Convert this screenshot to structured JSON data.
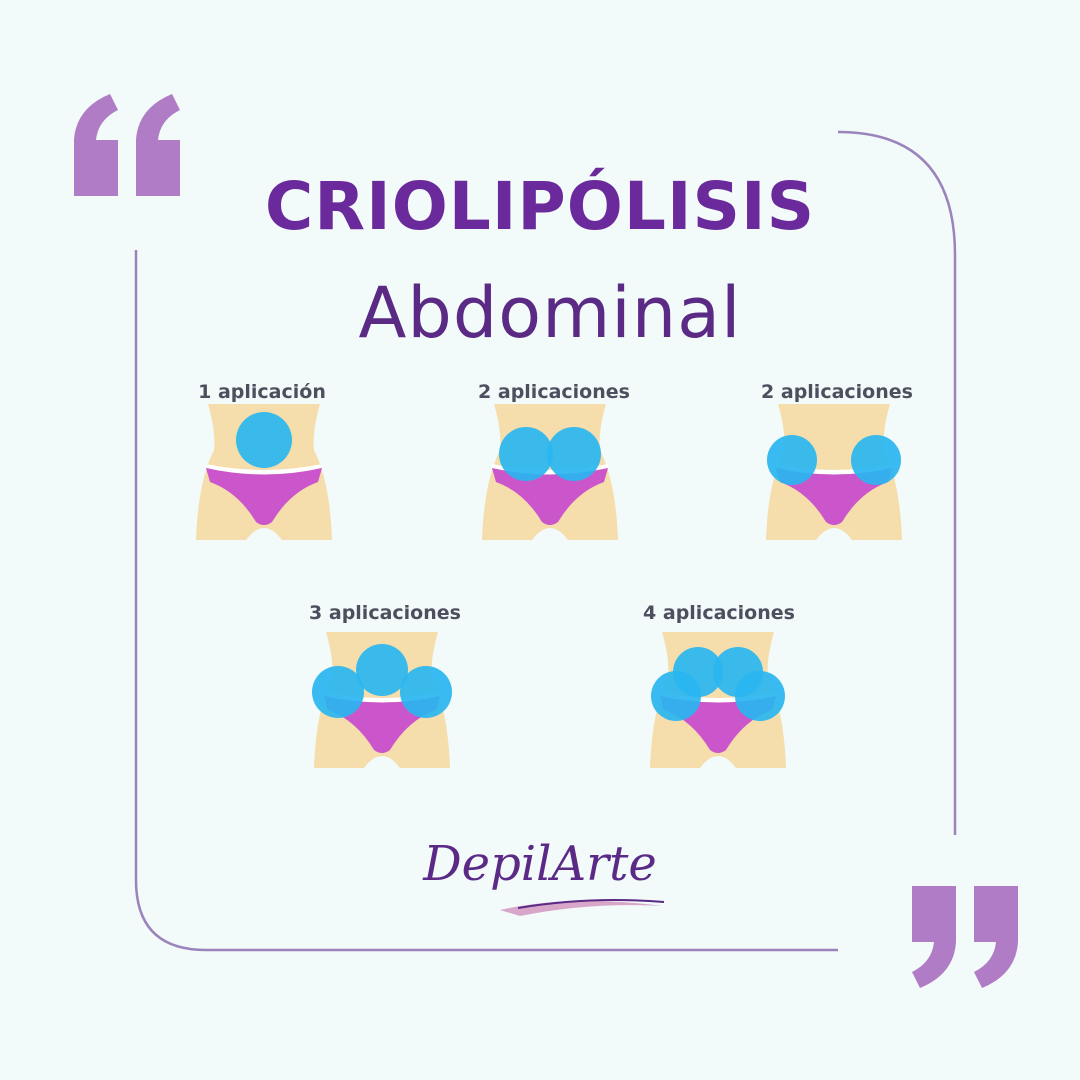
{
  "title": "CRIOLIPÓLISIS",
  "subtitle": "Abdominal",
  "figures": [
    {
      "label": "1 aplicación",
      "applications": 1
    },
    {
      "label": "2 aplicaciones",
      "applications": 2
    },
    {
      "label": "2 aplicaciones",
      "applications": 2
    },
    {
      "label": "3 aplicaciones",
      "applications": 3
    },
    {
      "label": "4 aplicaciones",
      "applications": 4
    }
  ],
  "logo": {
    "text": "DepilArte"
  },
  "colors": {
    "accent": "#6b2a9c",
    "quote": "#b07cc6",
    "skin": "#f5deac",
    "underwear": "#cb55cb",
    "applicator": "#29b5f0"
  }
}
